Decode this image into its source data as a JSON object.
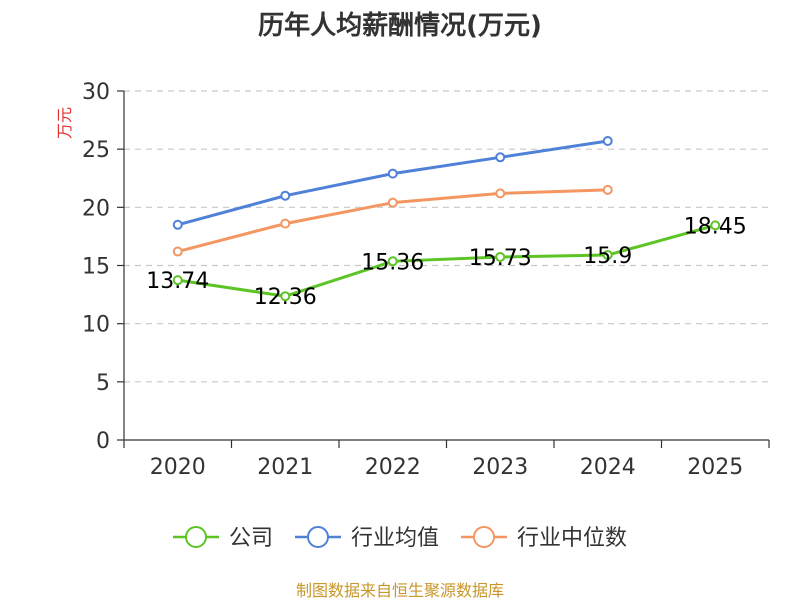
{
  "chart_data": {
    "type": "line",
    "title": "历年人均薪酬情况(万元)",
    "xlabel": "",
    "ylabel": "万元",
    "categories": [
      "2020",
      "2021",
      "2022",
      "2023",
      "2024",
      "2025"
    ],
    "ylim": [
      0,
      30
    ],
    "yticks": [
      0,
      5,
      10,
      15,
      20,
      25,
      30
    ],
    "grid": true,
    "legend_position": "bottom",
    "series": [
      {
        "name": "公司",
        "color": "#5cc525",
        "values": [
          13.74,
          12.36,
          15.36,
          15.73,
          15.9,
          18.45
        ],
        "labels": [
          "13.74",
          "12.36",
          "15.36",
          "15.73",
          "15.9",
          "18.45"
        ]
      },
      {
        "name": "行业均值",
        "color": "#4f81d9",
        "values": [
          18.5,
          21.0,
          22.9,
          24.3,
          25.7,
          null
        ]
      },
      {
        "name": "行业中位数",
        "color": "#f49662",
        "values": [
          16.2,
          18.6,
          20.4,
          21.2,
          21.5,
          null
        ]
      }
    ],
    "source": "制图数据来自恒生聚源数据库"
  }
}
